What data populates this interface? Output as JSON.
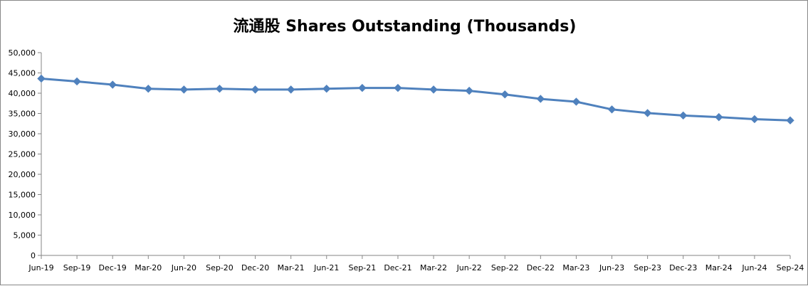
{
  "chart_data": {
    "type": "line",
    "title": "流通股 Shares Outstanding (Thousands)",
    "xlabel": "",
    "ylabel": "",
    "ylim": [
      0,
      50000
    ],
    "yticks": [
      0,
      5000,
      10000,
      15000,
      20000,
      25000,
      30000,
      35000,
      40000,
      45000,
      50000
    ],
    "ytick_labels": [
      "0",
      "5,000",
      "10,000",
      "15,000",
      "20,000",
      "25,000",
      "30,000",
      "35,000",
      "40,000",
      "45,000",
      "50,000"
    ],
    "categories": [
      "Jun-19",
      "Sep-19",
      "Dec-19",
      "Mar-20",
      "Jun-20",
      "Sep-20",
      "Dec-20",
      "Mar-21",
      "Jun-21",
      "Sep-21",
      "Dec-21",
      "Mar-22",
      "Jun-22",
      "Sep-22",
      "Dec-22",
      "Mar-23",
      "Jun-23",
      "Sep-23",
      "Dec-23",
      "Mar-24",
      "Jun-24",
      "Sep-24"
    ],
    "series": [
      {
        "values": [
          43600,
          42900,
          42100,
          41100,
          40900,
          41100,
          40900,
          40900,
          41100,
          41300,
          41300,
          40900,
          40600,
          39700,
          38600,
          37900,
          36000,
          35100,
          34500,
          34100,
          33600,
          33300
        ],
        "color": "#4f81bd",
        "marker": "diamond"
      }
    ],
    "grid": false,
    "legend": "none"
  }
}
